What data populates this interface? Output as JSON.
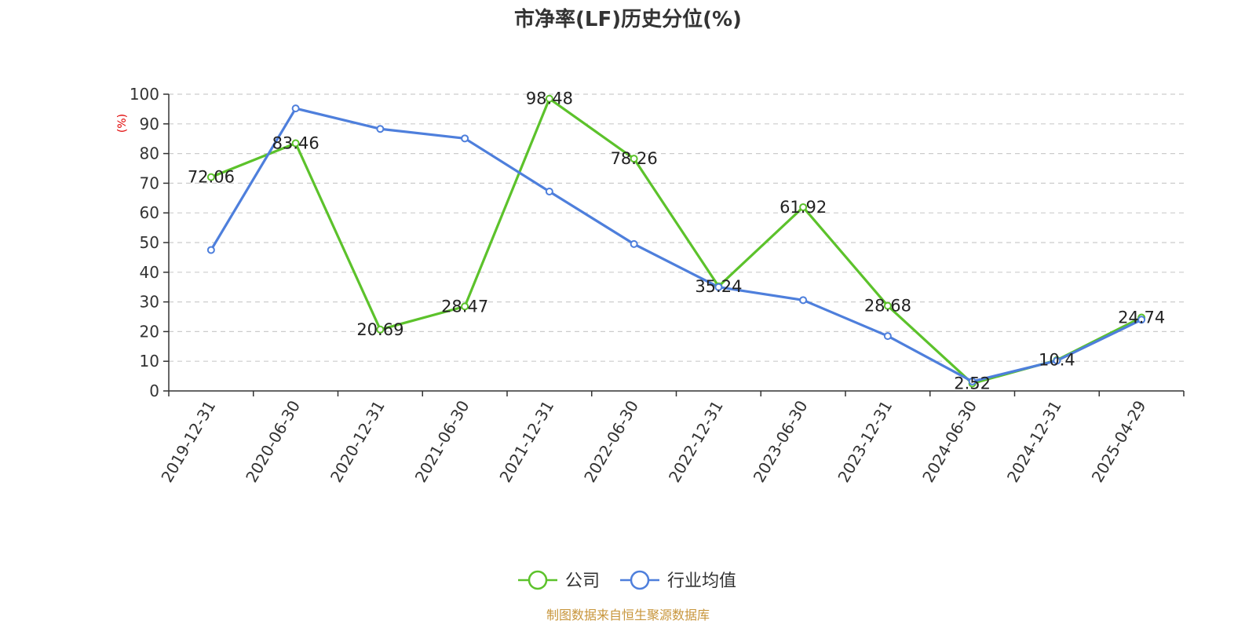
{
  "chart_data": {
    "type": "line",
    "title": "市净率(LF)历史分位(%)",
    "ylabel": "(%)",
    "xlabel": "",
    "ylim": [
      0,
      100
    ],
    "yticks": [
      0,
      10,
      20,
      30,
      40,
      50,
      60,
      70,
      80,
      90,
      100
    ],
    "grid": true,
    "legend_position": "bottom-center",
    "categories": [
      "2019-12-31",
      "2020-06-30",
      "2020-12-31",
      "2021-06-30",
      "2021-12-31",
      "2022-06-30",
      "2022-12-31",
      "2023-06-30",
      "2023-12-31",
      "2024-06-30",
      "2024-12-31",
      "2025-04-29"
    ],
    "series": [
      {
        "name": "公司",
        "color": "#5cc22b",
        "values": [
          72.06,
          83.46,
          20.69,
          28.47,
          98.48,
          78.26,
          35.24,
          61.92,
          28.68,
          2.52,
          10.4,
          24.74
        ],
        "labels": [
          "72.06",
          "83.46",
          "20.69",
          "28.47",
          "98.48",
          "78.26",
          "35.24",
          "61.92",
          "28.68",
          "2.52",
          "10.4",
          "24.74"
        ]
      },
      {
        "name": "行业均值",
        "color": "#4e7fdc",
        "values": [
          47.5,
          95.2,
          88.3,
          85.1,
          67.2,
          49.5,
          35.0,
          30.6,
          18.5,
          3.2,
          10.2,
          24.0
        ]
      }
    ],
    "source": "制图数据来自恒生聚源数据库"
  }
}
